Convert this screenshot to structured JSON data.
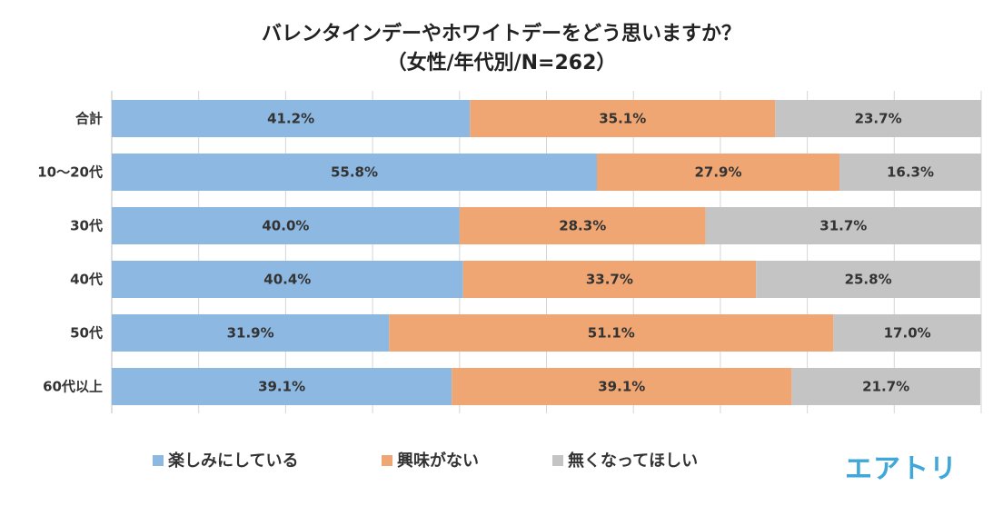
{
  "chart_data": {
    "type": "bar",
    "orientation": "horizontal",
    "stacked": true,
    "percent_stacked": true,
    "title": "バレンタインデーやホワイトデーをどう思いますか？",
    "subtitle": "（女性/年代別/N=262）",
    "categories": [
      "合計",
      "10～20代",
      "30代",
      "40代",
      "50代",
      "60代以上"
    ],
    "series": [
      {
        "name": "楽しみにしている",
        "color": "#8db8e2",
        "values": [
          41.2,
          55.8,
          40.0,
          40.4,
          31.9,
          39.1
        ],
        "labels": [
          "41.2%",
          "55.8%",
          "40.0%",
          "40.4%",
          "31.9%",
          "39.1%"
        ]
      },
      {
        "name": "興味がない",
        "color": "#f0a673",
        "values": [
          35.1,
          27.9,
          28.3,
          33.7,
          51.1,
          39.1
        ],
        "labels": [
          "35.1%",
          "27.9%",
          "28.3%",
          "33.7%",
          "51.1%",
          "39.1%"
        ]
      },
      {
        "name": "無くなってほしい",
        "color": "#c4c4c4",
        "values": [
          23.7,
          16.3,
          31.7,
          25.8,
          17.0,
          21.7
        ],
        "labels": [
          "23.7%",
          "16.3%",
          "31.7%",
          "25.8%",
          "17.0%",
          "21.7%"
        ]
      }
    ],
    "xlim": [
      0,
      100
    ],
    "grid": true,
    "legend_position": "bottom"
  },
  "brand": {
    "logo_text": "エアトリ",
    "color": "#3fa8d8"
  }
}
